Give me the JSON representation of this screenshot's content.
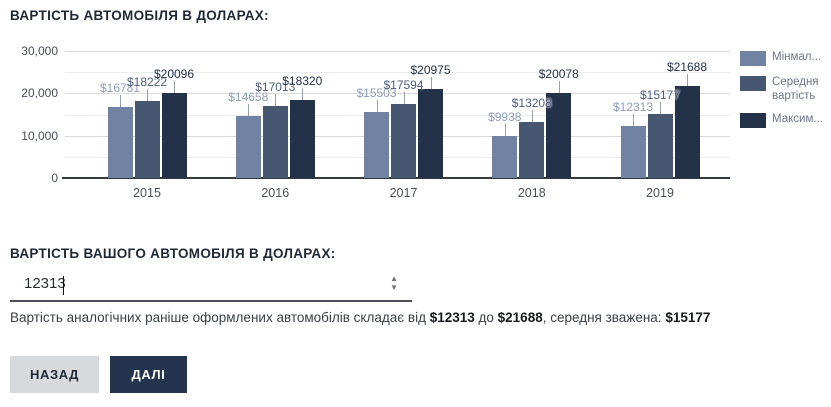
{
  "chart_section": {
    "title": "ВАРТІСТЬ АВТОМОБІЛЯ В ДОЛАРАХ:"
  },
  "chart_data": {
    "type": "bar",
    "title": "ВАРТІСТЬ АВТОМОБІЛЯ В ДОЛАРАХ:",
    "categories": [
      "2015",
      "2016",
      "2017",
      "2018",
      "2019"
    ],
    "series": [
      {
        "name": "Мінімальна вартість",
        "legend_label": "Мінмал...",
        "color": "#7083a3",
        "label_color": "#8d9cba",
        "values": [
          16781,
          14658,
          15503,
          9938,
          12313
        ]
      },
      {
        "name": "Середня вартість",
        "legend_label": "Середня вартість",
        "color": "#475671",
        "label_color": "#4d5d80",
        "values": [
          18222,
          17013,
          17594,
          13208,
          15177
        ]
      },
      {
        "name": "Максимальна вартість",
        "legend_label": "Максим...",
        "color": "#233149",
        "label_color": "#223048",
        "values": [
          20096,
          18320,
          20975,
          20078,
          21688
        ]
      }
    ],
    "data_label_prefix": "$",
    "y_ticks": [
      {
        "value": 30000,
        "label": "30,000"
      },
      {
        "value": 20000,
        "label": "20,000"
      },
      {
        "value": 10000,
        "label": "10,000"
      },
      {
        "value": 0,
        "label": "0"
      }
    ],
    "ylim": [
      0,
      30000
    ],
    "grid": true,
    "minor_grid_step": 5000,
    "legend_position": "right"
  },
  "input_section": {
    "title": "ВАРТІСТЬ ВАШОГО АВТОМОБІЛЯ В ДОЛАРАХ:",
    "value": "12313",
    "summary": {
      "prefix": "Вартість аналогічних раніше оформлених автомобілів складає від ",
      "min": "$12313",
      "between": " до ",
      "max": "$21688",
      "middle": ", середня зважена: ",
      "avg": "$15177"
    }
  },
  "buttons": {
    "back": "НАЗАД",
    "next": "ДАЛІ"
  }
}
